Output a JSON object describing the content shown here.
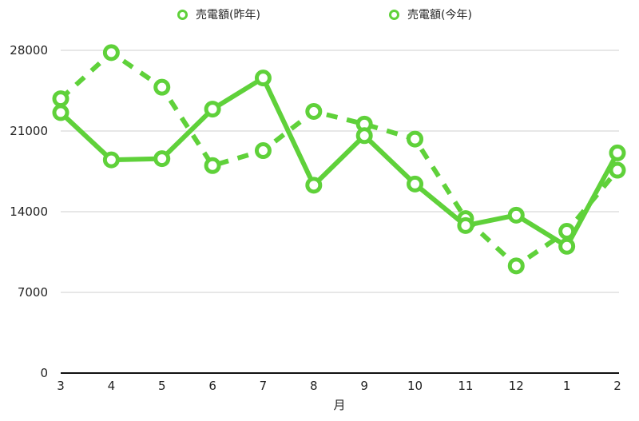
{
  "chart_data": {
    "type": "line",
    "title": "",
    "xlabel": "月",
    "ylabel": "",
    "categories": [
      "3",
      "4",
      "5",
      "6",
      "7",
      "8",
      "9",
      "10",
      "11",
      "12",
      "1",
      "2"
    ],
    "series": [
      {
        "name": "売電額(昨年)",
        "style": "dashed",
        "color": "#5fd13a",
        "values": [
          23800,
          27800,
          24800,
          18000,
          19300,
          22700,
          21600,
          20300,
          13400,
          9300,
          12300,
          17600
        ]
      },
      {
        "name": "売電額(今年)",
        "style": "solid",
        "color": "#5fd13a",
        "values": [
          22600,
          18500,
          18600,
          22900,
          25600,
          16300,
          20600,
          16400,
          12800,
          13700,
          11000,
          19100
        ]
      }
    ],
    "yticks": [
      0,
      7000,
      14000,
      21000,
      28000
    ],
    "ylim": [
      0,
      28000
    ],
    "grid": true,
    "legend_position": "top"
  },
  "legend": {
    "items": [
      {
        "label": "売電額(昨年)"
      },
      {
        "label": "売電額(今年)"
      }
    ]
  }
}
